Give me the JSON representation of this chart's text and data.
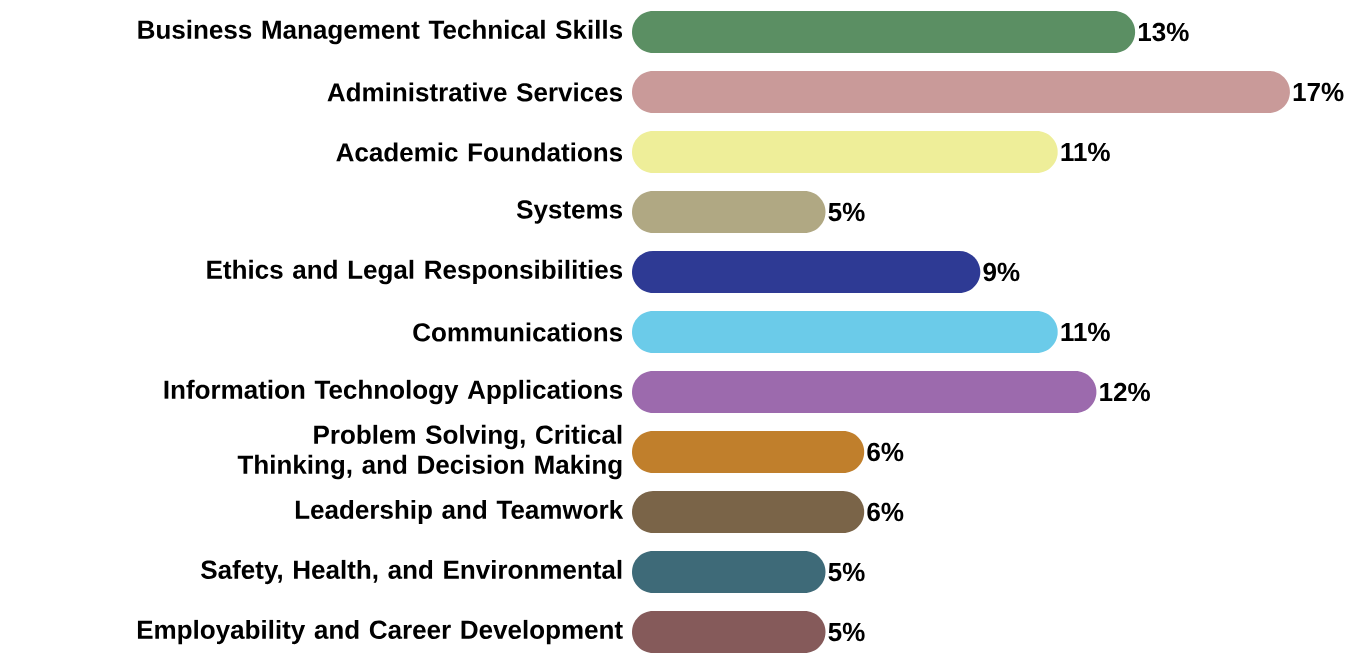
{
  "chart_data": {
    "type": "bar",
    "orientation": "horizontal",
    "categories": [
      "Business Management Technical Skills",
      "Administrative Services",
      "Academic Foundations",
      "Systems",
      "Ethics and Legal Responsibilities",
      "Communications",
      "Information Technology Applications",
      "Problem Solving, Critical Thinking, and Decision Making",
      "Leadership and Teamwork",
      "Safety, Health, and Environmental",
      "Employability and Career Development"
    ],
    "values": [
      13,
      17,
      11,
      5,
      9,
      11,
      12,
      6,
      6,
      5,
      5
    ],
    "value_labels": [
      "13%",
      "17%",
      "11%",
      "5%",
      "9%",
      "11%",
      "12%",
      "6%",
      "6%",
      "5%",
      "5%"
    ],
    "colors": [
      "#5b8f63",
      "#c99a99",
      "#eeee99",
      "#b0a883",
      "#2e3a94",
      "#6bcbe9",
      "#9c6aad",
      "#c07f2c",
      "#7a6448",
      "#3e6a78",
      "#855a5a"
    ]
  }
}
